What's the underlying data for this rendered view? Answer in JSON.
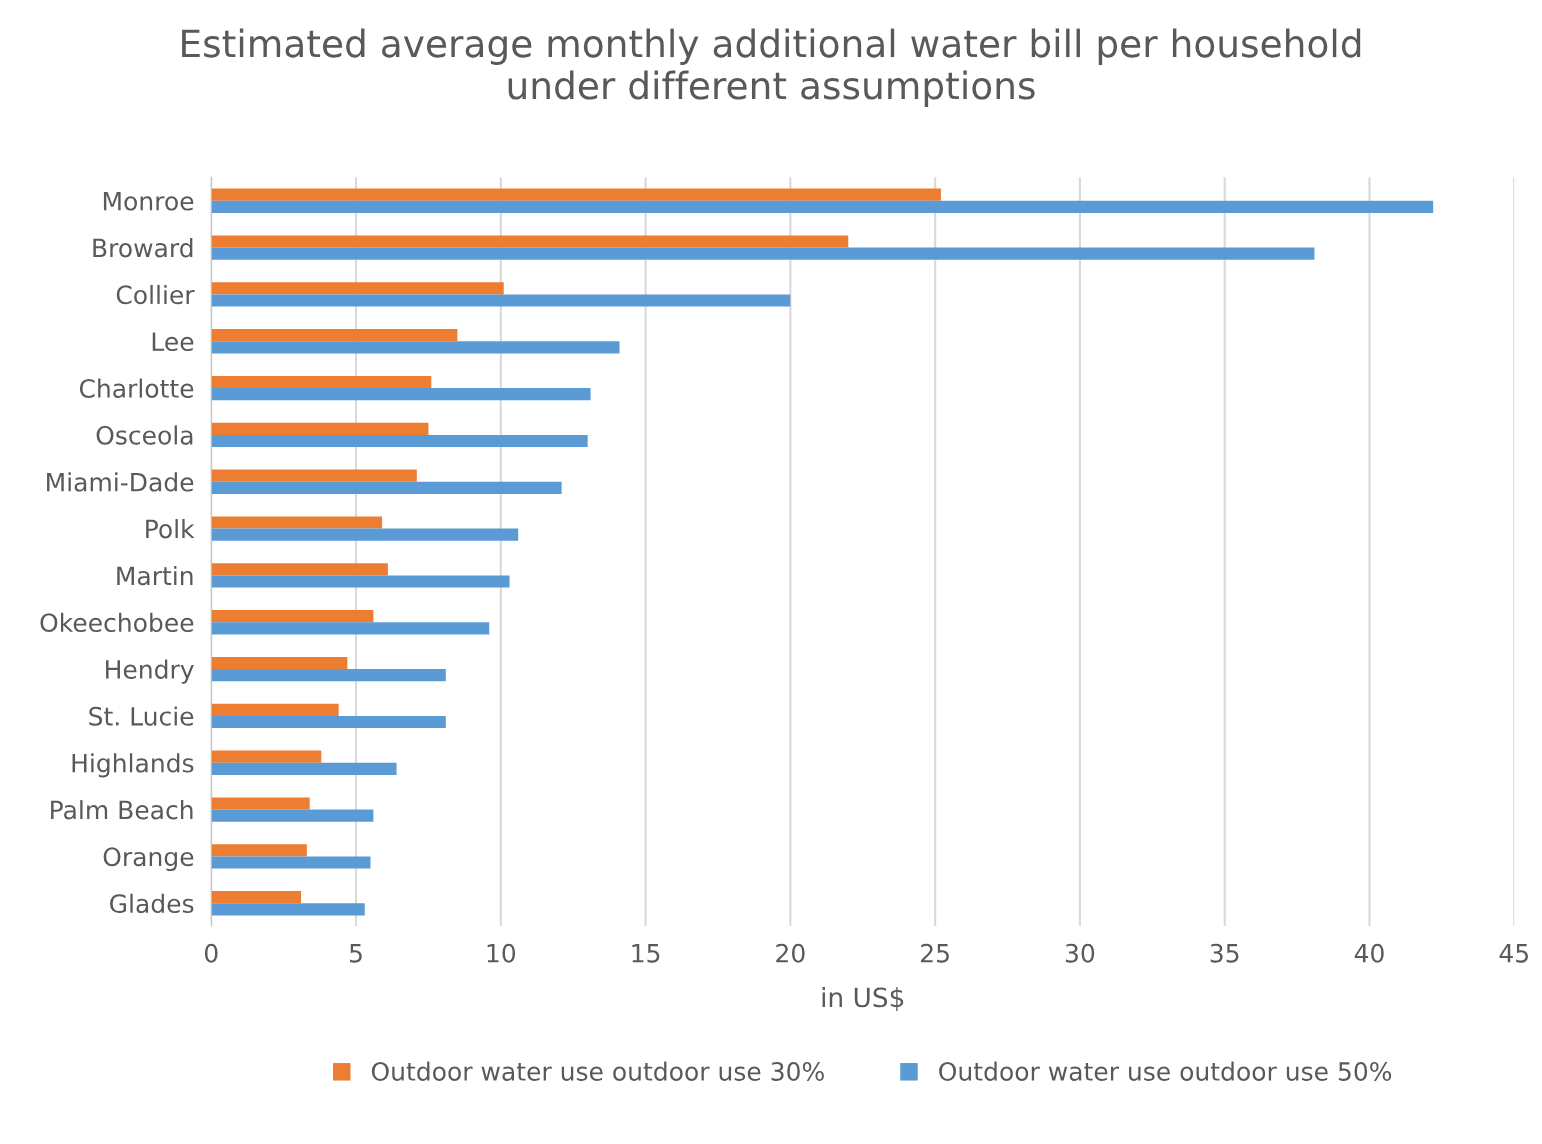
{
  "chart_data": {
    "type": "bar",
    "orientation": "horizontal",
    "title": "Estimated average monthly additional water bill per household\nunder different assumptions",
    "xlabel": "in US$",
    "categories": [
      "Monroe",
      "Broward",
      "Collier",
      "Lee",
      "Charlotte",
      "Osceola",
      "Miami-Dade",
      "Polk",
      "Martin",
      "Okeechobee",
      "Hendry",
      "St. Lucie",
      "Highlands",
      "Palm Beach",
      "Orange",
      "Glades"
    ],
    "series": [
      {
        "name": "Outdoor water use outdoor use 30%",
        "color": "#ed7d31",
        "values": [
          25.2,
          22.0,
          10.1,
          8.5,
          7.6,
          7.5,
          7.1,
          5.9,
          6.1,
          5.6,
          4.7,
          4.4,
          3.8,
          3.4,
          3.3,
          3.1
        ]
      },
      {
        "name": "Outdoor water use outdoor use 50%",
        "color": "#5b9bd5",
        "values": [
          42.2,
          38.1,
          20.0,
          14.1,
          13.1,
          13.0,
          12.1,
          10.6,
          10.3,
          9.6,
          8.1,
          8.1,
          6.4,
          5.6,
          5.5,
          5.3
        ]
      }
    ],
    "xlim": [
      0,
      45
    ],
    "xticks": [
      0,
      5,
      10,
      15,
      20,
      25,
      30,
      35,
      40,
      45
    ],
    "grid": "x",
    "legend": "bottom"
  }
}
